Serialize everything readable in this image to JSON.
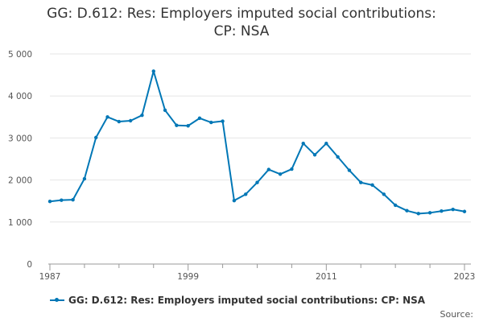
{
  "title_line1": "GG: D.612: Res: Employers imputed social contributions:",
  "title_line2": "CP: NSA",
  "source_label": "Source:",
  "colors": {
    "series": "#0077b6",
    "grid": "#e6e6e6",
    "axis": "#999999"
  },
  "chart_data": {
    "type": "line",
    "title": "GG: D.612: Res: Employers imputed social contributions: CP: NSA",
    "xlabel": "",
    "ylabel": "",
    "x": [
      1987,
      1988,
      1989,
      1990,
      1991,
      1992,
      1993,
      1994,
      1995,
      1996,
      1997,
      1998,
      1999,
      2000,
      2001,
      2002,
      2003,
      2004,
      2005,
      2006,
      2007,
      2008,
      2009,
      2010,
      2011,
      2012,
      2013,
      2014,
      2015,
      2016,
      2017,
      2018,
      2019,
      2020,
      2021,
      2022,
      2023
    ],
    "series": [
      {
        "name": "GG: D.612: Res: Employers imputed social contributions: CP: NSA",
        "values": [
          1490,
          1520,
          1530,
          2030,
          3010,
          3500,
          3390,
          3410,
          3540,
          4590,
          3660,
          3300,
          3290,
          3470,
          3370,
          3400,
          1510,
          1660,
          1940,
          2250,
          2140,
          2260,
          2870,
          2600,
          2870,
          2550,
          2230,
          1940,
          1880,
          1660,
          1400,
          1270,
          1200,
          1220,
          1260,
          1300,
          1250
        ]
      }
    ],
    "ylim": [
      0,
      5000
    ],
    "yticks": [
      0,
      1000,
      2000,
      3000,
      4000,
      5000
    ],
    "ytick_labels": [
      "0",
      "1 000",
      "2 000",
      "3 000",
      "4 000",
      "5 000"
    ],
    "xticks": [
      1987,
      1999,
      2011,
      2023
    ],
    "xtick_labels": [
      "1987",
      "1999",
      "2011",
      "2023"
    ],
    "grid": true,
    "legend_position": "bottom"
  }
}
